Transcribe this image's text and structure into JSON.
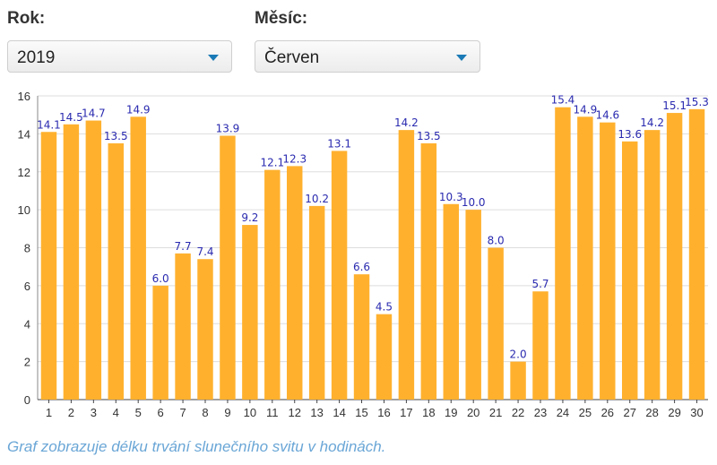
{
  "filters": {
    "year_label": "Rok:",
    "year_value": "2019",
    "month_label": "Měsíc:",
    "month_value": "Červen"
  },
  "caption": "Graf zobrazuje délku trvání slunečního svitu v hodinách.",
  "colors": {
    "bar": "#ffb12e",
    "value_label": "#2a2ab0",
    "grid": "#dddddd",
    "caption": "#6aa6d6",
    "dropdown_arrow": "#1a7ab5"
  },
  "chart_data": {
    "type": "bar",
    "categories": [
      "1",
      "2",
      "3",
      "4",
      "5",
      "6",
      "7",
      "8",
      "9",
      "10",
      "11",
      "12",
      "13",
      "14",
      "15",
      "16",
      "17",
      "18",
      "19",
      "20",
      "21",
      "22",
      "23",
      "24",
      "25",
      "26",
      "27",
      "28",
      "29",
      "30"
    ],
    "values": [
      14.1,
      14.5,
      14.7,
      13.5,
      14.9,
      6.0,
      7.7,
      7.4,
      13.9,
      9.2,
      12.1,
      12.3,
      10.2,
      13.1,
      6.6,
      4.5,
      14.2,
      13.5,
      10.3,
      10.0,
      8.0,
      2.0,
      5.7,
      15.4,
      14.9,
      14.6,
      13.6,
      14.2,
      15.1,
      15.3
    ],
    "value_labels": [
      "14.1",
      "14.5",
      "14.7",
      "13.5",
      "14.9",
      "6.0",
      "7.7",
      "7.4",
      "13.9",
      "9.2",
      "12.1",
      "12.3",
      "10.2",
      "13.1",
      "6.6",
      "4.5",
      "14.2",
      "13.5",
      "10.3",
      "10.0",
      "8.0",
      "2.0",
      "5.7",
      "15.4",
      "14.9",
      "14.6",
      "13.6",
      "14.2",
      "15.1",
      "15.3"
    ],
    "ylim": [
      0,
      16
    ],
    "yticks": [
      "0",
      "2",
      "4",
      "6",
      "8",
      "10",
      "12",
      "14",
      "16"
    ],
    "grid": true,
    "title": "",
    "xlabel": "",
    "ylabel": ""
  }
}
